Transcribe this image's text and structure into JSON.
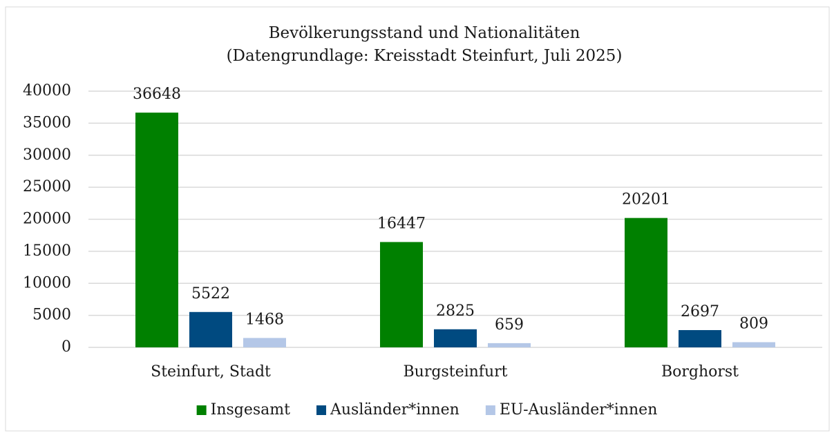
{
  "chart_data": {
    "type": "bar",
    "title": "Bevölkerungsstand und Nationalitäten",
    "subtitle": "(Datengrundlage: Kreisstadt Steinfurt, Juli 2025)",
    "categories": [
      "Steinfurt, Stadt",
      "Burgsteinfurt",
      "Borghorst"
    ],
    "series": [
      {
        "name": "Insgesamt",
        "color": "#008000",
        "values": [
          36648,
          16447,
          20201
        ]
      },
      {
        "name": "Ausländer*innen",
        "color": "#004a80",
        "values": [
          5522,
          2825,
          2697
        ]
      },
      {
        "name": "EU-Ausländer*innen",
        "color": "#b4c7e7",
        "values": [
          1468,
          659,
          809
        ]
      }
    ],
    "ylim": [
      0,
      40000
    ],
    "yticks": [
      0,
      5000,
      10000,
      15000,
      20000,
      25000,
      30000,
      35000,
      40000
    ],
    "grid": true,
    "legend": "bottom"
  }
}
